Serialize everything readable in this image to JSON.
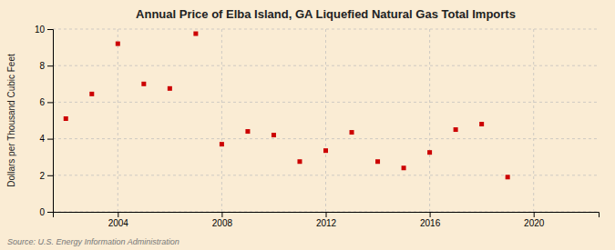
{
  "chart_data": {
    "type": "scatter",
    "title": "Annual Price of Elba Island, GA Liquefied Natural Gas Total Imports",
    "y_label": "Dollars per Thousand Cubic Feet",
    "source": "Source: U.S. Energy Information Administration",
    "x": [
      2002,
      2003,
      2004,
      2005,
      2006,
      2007,
      2008,
      2009,
      2010,
      2011,
      2012,
      2013,
      2014,
      2015,
      2016,
      2017,
      2018,
      2019
    ],
    "values": [
      5.1,
      6.45,
      9.2,
      7.0,
      6.75,
      9.75,
      3.7,
      4.4,
      4.2,
      2.75,
      3.35,
      4.35,
      2.75,
      2.4,
      3.25,
      4.5,
      4.8,
      1.9
    ],
    "color": "#cc0000",
    "marker": "square",
    "xlim": [
      2001.5,
      2022.5
    ],
    "xticks": [
      2004,
      2008,
      2012,
      2016,
      2020
    ],
    "ylim": [
      0,
      10
    ],
    "yticks": [
      0,
      2,
      4,
      6,
      8,
      10
    ],
    "grid": true
  }
}
